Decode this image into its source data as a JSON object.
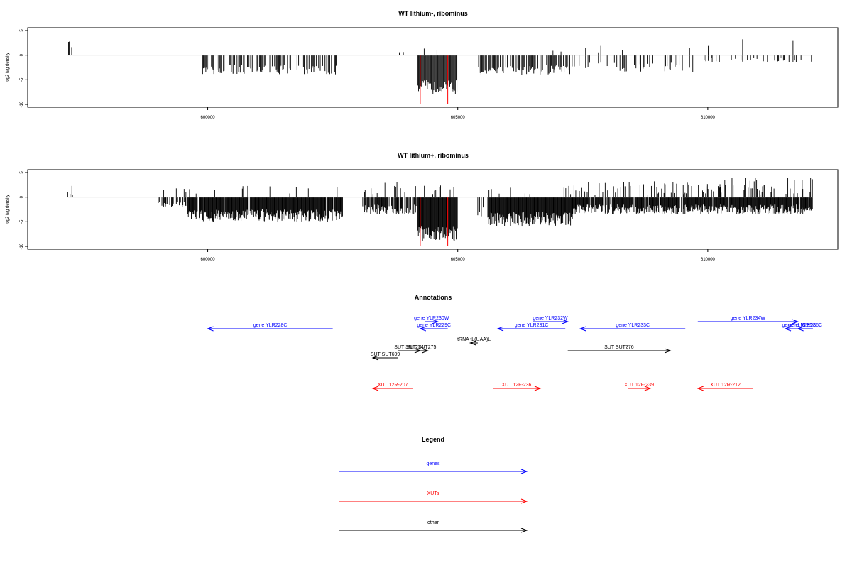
{
  "chart_data": [
    {
      "type": "bar",
      "title": "WT lithium-, ribominus",
      "ylabel": "log2 tag density",
      "xlim": [
        596400,
        612600
      ],
      "ylim": [
        -10,
        5
      ],
      "x_ticks": [
        600000,
        605000,
        610000
      ],
      "y_ticks": [
        5,
        0,
        -5,
        -10
      ],
      "density": "sparse",
      "red_bars": [
        {
          "x": 604250,
          "y": -10
        },
        {
          "x": 604800,
          "y": -10
        }
      ]
    },
    {
      "type": "bar",
      "title": "WT lithium+, ribominus",
      "ylabel": "log2 tag density",
      "xlim": [
        596400,
        612600
      ],
      "ylim": [
        -10,
        5
      ],
      "x_ticks": [
        600000,
        605000,
        610000
      ],
      "y_ticks": [
        5,
        0,
        -5,
        -10
      ],
      "density": "dense",
      "red_bars": [
        {
          "x": 604250,
          "y": -10
        },
        {
          "x": 604800,
          "y": -10
        }
      ]
    }
  ],
  "annotations": {
    "title": "Annotations",
    "colors": {
      "genes": "#0000ff",
      "XUTs": "#ff0000",
      "other": "#000000"
    },
    "features": [
      {
        "label": "gene YLR228C",
        "kind": "genes",
        "start": 600000,
        "end": 602500,
        "strand": "-",
        "row": 1
      },
      {
        "label": "gene YLR230W",
        "kind": "genes",
        "start": 604350,
        "end": 604600,
        "strand": "+",
        "row": 0
      },
      {
        "label": "gene YLR229C",
        "kind": "genes",
        "start": 604250,
        "end": 604800,
        "strand": "-",
        "row": 1
      },
      {
        "label": "gene YLR232W",
        "kind": "genes",
        "start": 606500,
        "end": 607200,
        "strand": "+",
        "row": 0
      },
      {
        "label": "gene YLR231C",
        "kind": "genes",
        "start": 605800,
        "end": 607150,
        "strand": "-",
        "row": 1
      },
      {
        "label": "gene YLR233C",
        "kind": "genes",
        "start": 607450,
        "end": 609550,
        "strand": "-",
        "row": 1
      },
      {
        "label": "gene YLR234W",
        "kind": "genes",
        "start": 609800,
        "end": 611800,
        "strand": "+",
        "row": 0
      },
      {
        "label": "gene YLR235C",
        "kind": "genes",
        "start": 611550,
        "end": 612100,
        "strand": "-",
        "row": 1
      },
      {
        "label": "gene YLR236C",
        "kind": "genes",
        "start": 611800,
        "end": 612100,
        "strand": "-",
        "row": 1
      },
      {
        "label": "tRNA tL(UAA)L",
        "kind": "other",
        "start": 605250,
        "end": 605400,
        "strand": "-",
        "row": 2
      },
      {
        "label": "SUT SUT274",
        "kind": "other",
        "start": 603800,
        "end": 604250,
        "strand": "+",
        "row": 3
      },
      {
        "label": "SUT SUT275",
        "kind": "other",
        "start": 604150,
        "end": 604400,
        "strand": "+",
        "row": 3
      },
      {
        "label": "SUT SUT699",
        "kind": "other",
        "start": 603300,
        "end": 603800,
        "strand": "-",
        "row": 4
      },
      {
        "label": "SUT SUT276",
        "kind": "other",
        "start": 607200,
        "end": 609250,
        "strand": "+",
        "row": 3
      },
      {
        "label": "XUT 12R-207",
        "kind": "XUTs",
        "start": 603300,
        "end": 604100,
        "strand": "-",
        "row": 5
      },
      {
        "label": "XUT 12F-236",
        "kind": "XUTs",
        "start": 605700,
        "end": 606650,
        "strand": "+",
        "row": 5
      },
      {
        "label": "XUT 12F-239",
        "kind": "XUTs",
        "start": 608400,
        "end": 608850,
        "strand": "+",
        "row": 5
      },
      {
        "label": "XUT 12R-212",
        "kind": "XUTs",
        "start": 609800,
        "end": 610900,
        "strand": "-",
        "row": 5
      }
    ]
  },
  "legend": {
    "title": "Legend",
    "entries": [
      {
        "label": "genes",
        "color": "#0000ff"
      },
      {
        "label": "XUTs",
        "color": "#ff0000"
      },
      {
        "label": "other",
        "color": "#000000"
      }
    ]
  }
}
